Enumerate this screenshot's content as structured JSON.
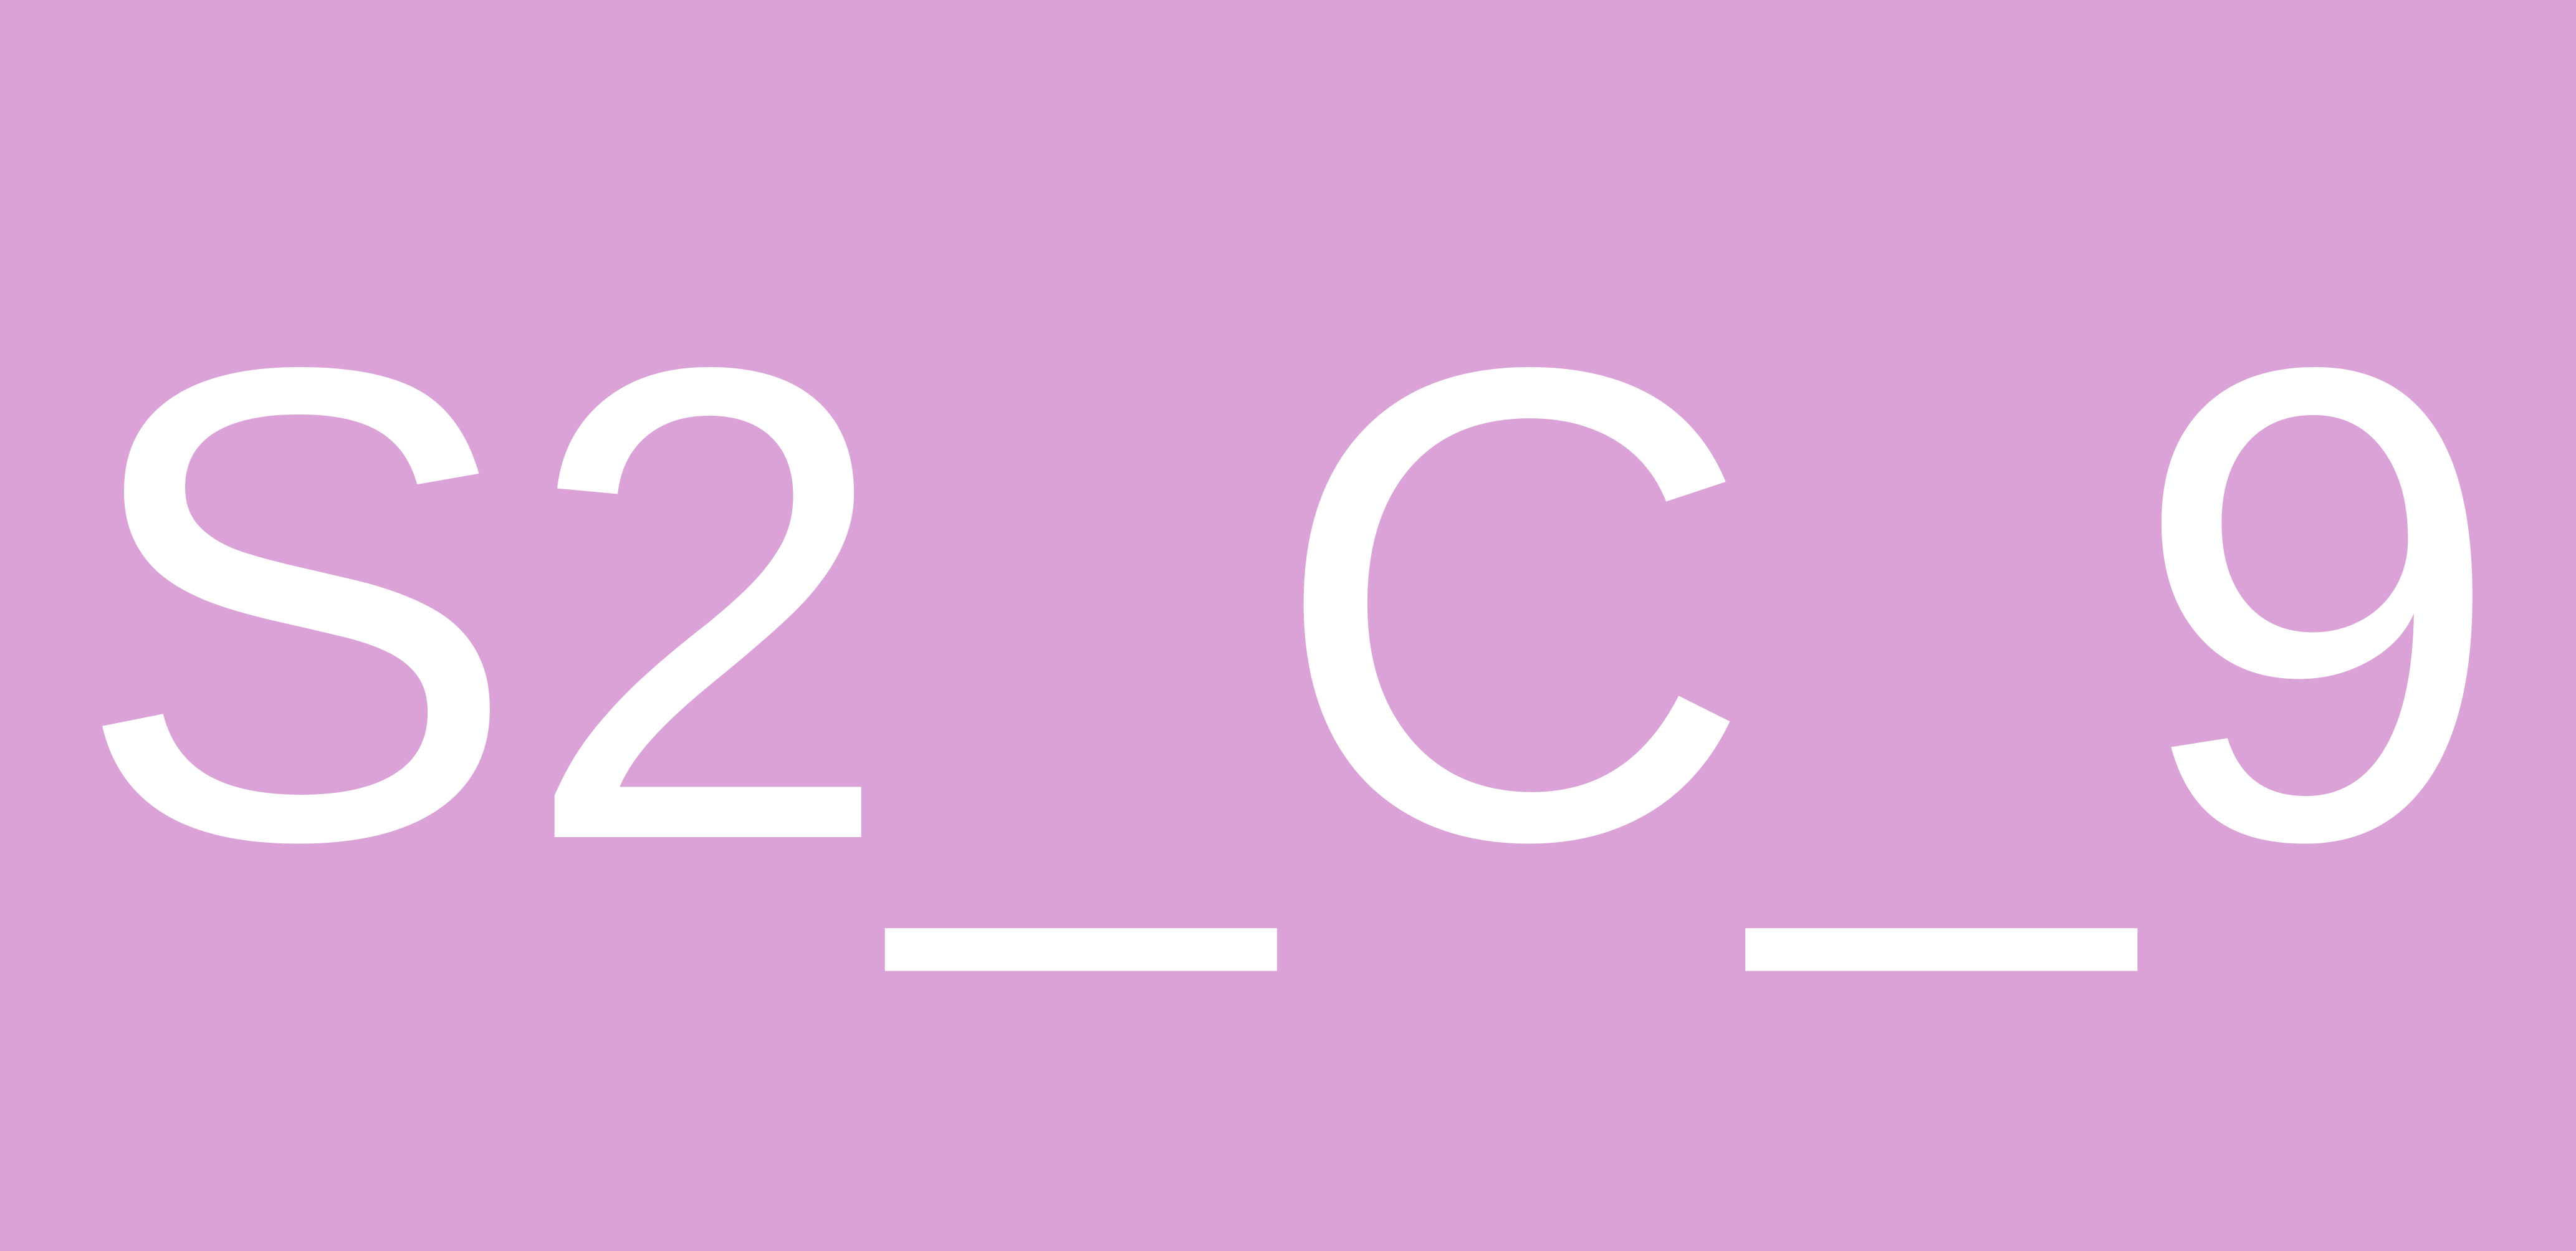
{
  "label": {
    "text": "S2_C_9"
  },
  "colors": {
    "background": "#dba2d8",
    "text": "#ffffff"
  }
}
